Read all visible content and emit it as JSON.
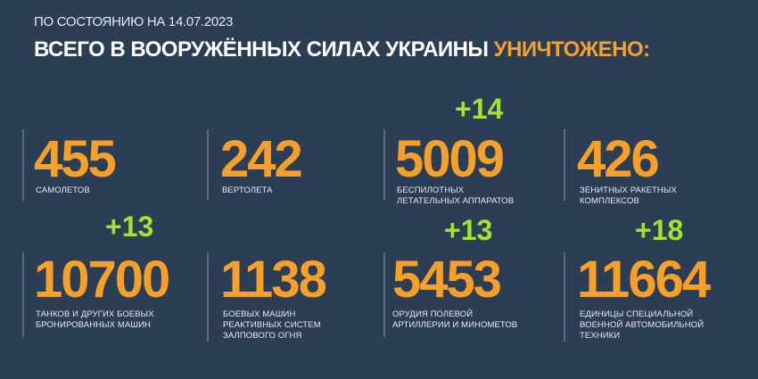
{
  "header": {
    "date": "ПО СОСТОЯНИЮ НА 14.07.2023",
    "title_main": "ВСЕГО В ВООРУЖЁННЫХ СИЛАХ УКРАИНЫ",
    "title_accent": "УНИЧТОЖЕНО:"
  },
  "colors": {
    "background": "#2c3d56",
    "number": "#f6a02a",
    "increment": "#a3e332"
  },
  "stats": [
    {
      "value": "455",
      "label": "САМОЛЕТОВ"
    },
    {
      "value": "242",
      "label": "ВЕРТОЛЕТА"
    },
    {
      "value": "5009",
      "label": "БЕСПИЛОТНЫХ\nЛЕТАТЕЛЬНЫХ АППАРАТОВ",
      "increment": "+14"
    },
    {
      "value": "426",
      "label": "ЗЕНИТНЫХ РАКЕТНЫХ\nКОМПЛЕКСОВ"
    },
    {
      "value": "10700",
      "label": "ТАНКОВ И ДРУГИХ БОЕВЫХ\nБРОНИРОВАННЫХ МАШИН",
      "increment": "+13"
    },
    {
      "value": "1138",
      "label": "БОЕВЫХ МАШИН\nРЕАКТИВНЫХ СИСТЕМ\nЗАЛПОВОГО ОГНЯ"
    },
    {
      "value": "5453",
      "label": "ОРУДИЯ ПОЛЕВОЙ\nАРТИЛЛЕРИИ И МИНОМЕТОВ",
      "increment": "+13"
    },
    {
      "value": "11664",
      "label": "ЕДИНИЦЫ СПЕЦИАЛЬНОЙ\nВОЕННОЙ АВТОМОБИЛЬНОЙ\nТЕХНИКИ",
      "increment": "+18"
    }
  ]
}
